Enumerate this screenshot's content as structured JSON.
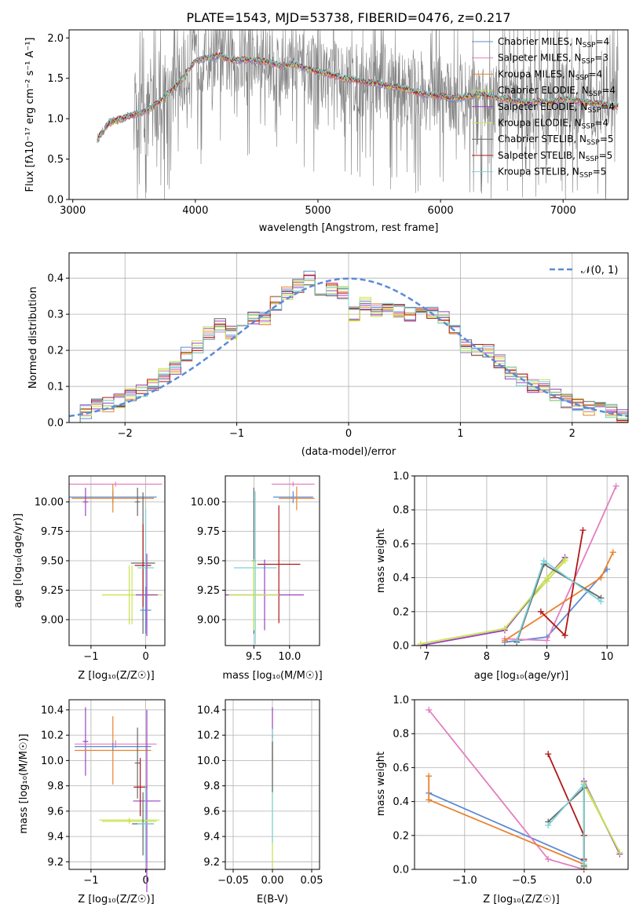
{
  "colors": {
    "chabrier_miles": "#5b8bd6",
    "salpeter_miles": "#e37ec0",
    "kroupa_miles": "#e8822d",
    "chabrier_elodie": "#c8e04a",
    "salpeter_elodie": "#9b3fc0",
    "kroupa_elodie": "#c9e65a",
    "chabrier_stelib": "#666666",
    "salpeter_stelib": "#b01818",
    "kroupa_stelib": "#7ad3d8",
    "data_grey": "#808080",
    "normal_curve": "#5b8bd6",
    "grid": "#b0b0b0"
  },
  "chart_data": [
    {
      "id": "spectrum",
      "type": "line",
      "title": "PLATE=1543, MJD=53738, FIBERID=0476, z=0.217",
      "xlabel": "wavelength [Angstrom, rest frame]",
      "ylabel": "Flux [fλ10⁻¹⁷ erg cm⁻² s⁻¹ A⁻¹]",
      "xlim": [
        2970,
        7530
      ],
      "ylim": [
        0,
        2.1
      ],
      "xticks": [
        "3000",
        "4000",
        "5000",
        "6000",
        "7000"
      ],
      "yticks": [
        "0.0",
        "0.5",
        "1.0",
        "1.5",
        "2.0"
      ],
      "legend_position": "top-right",
      "legend": [
        {
          "main": "Chabrier MILES, N",
          "sub": "SSP",
          "tail": "=4"
        },
        {
          "main": "Salpeter MILES, N",
          "sub": "SSP",
          "tail": "=3"
        },
        {
          "main": "Kroupa MILES, N",
          "sub": "SSP",
          "tail": "=4"
        },
        {
          "main": "Chabrier ELODIE, N",
          "sub": "SSP",
          "tail": "=4"
        },
        {
          "main": "Salpeter ELODIE, N",
          "sub": "SSP",
          "tail": "=4"
        },
        {
          "main": "Kroupa ELODIE, N",
          "sub": "SSP",
          "tail": "=4"
        },
        {
          "main": "Chabrier STELIB, N",
          "sub": "SSP",
          "tail": "=5"
        },
        {
          "main": "Salpeter STELIB, N",
          "sub": "SSP",
          "tail": "=5"
        },
        {
          "main": "Kroupa STELIB, N",
          "sub": "SSP",
          "tail": "=5"
        }
      ],
      "model_continuum": {
        "wavelength": [
          3200,
          3300,
          3400,
          3500,
          3600,
          3700,
          3800,
          3900,
          4000,
          4100,
          4200,
          4300,
          4400,
          4500,
          4600,
          4700,
          4800,
          4900,
          5000,
          5100,
          5200,
          5300,
          5400,
          5500,
          5600,
          5700,
          5800,
          5900,
          6000,
          6100,
          6200,
          6300,
          6400,
          6500,
          6600,
          6700,
          6800,
          6900,
          7000,
          7100,
          7200,
          7300,
          7400
        ],
        "flux": [
          0.75,
          0.95,
          1.0,
          1.05,
          1.1,
          1.2,
          1.35,
          1.5,
          1.72,
          1.75,
          1.78,
          1.72,
          1.73,
          1.72,
          1.7,
          1.65,
          1.68,
          1.62,
          1.58,
          1.55,
          1.5,
          1.48,
          1.45,
          1.43,
          1.4,
          1.38,
          1.32,
          1.3,
          1.28,
          1.25,
          1.27,
          1.3,
          1.28,
          1.25,
          1.23,
          1.2,
          1.22,
          1.2,
          1.25,
          1.22,
          1.2,
          1.18,
          1.15
        ]
      },
      "data_range": [
        3200,
        7450
      ]
    },
    {
      "id": "residuals",
      "type": "histogram",
      "xlabel": "(data-model)/error",
      "ylabel": "Normed distribution",
      "xlim": [
        -2.5,
        2.5
      ],
      "ylim": [
        0,
        0.47
      ],
      "xticks": [
        "−2",
        "−1",
        "0",
        "1",
        "2"
      ],
      "yticks": [
        "0.0",
        "0.1",
        "0.2",
        "0.3",
        "0.4"
      ],
      "legend_position": "top-right",
      "legend": [
        "𝒩(0, 1)"
      ],
      "bin_width": 0.1,
      "bin_start": -2.5,
      "heights": [
        0.02,
        0.03,
        0.05,
        0.05,
        0.06,
        0.08,
        0.09,
        0.1,
        0.13,
        0.15,
        0.19,
        0.21,
        0.25,
        0.27,
        0.25,
        0.27,
        0.29,
        0.29,
        0.33,
        0.36,
        0.38,
        0.4,
        0.36,
        0.37,
        0.36,
        0.3,
        0.33,
        0.31,
        0.32,
        0.31,
        0.3,
        0.32,
        0.3,
        0.29,
        0.25,
        0.21,
        0.2,
        0.2,
        0.17,
        0.14,
        0.12,
        0.1,
        0.1,
        0.08,
        0.06,
        0.05,
        0.04,
        0.04,
        0.03,
        0.02
      ]
    },
    {
      "id": "age_vs_Z",
      "type": "scatter",
      "xlabel": "Z [log₁₀(Z/Z☉)]",
      "ylabel": "age  [log₁₀(age/yr)]",
      "xlim": [
        -1.4,
        0.35
      ],
      "ylim": [
        8.78,
        10.22
      ],
      "xticks": [
        "−1",
        "0"
      ],
      "yticks": [
        "9.00",
        "9.25",
        "9.50",
        "9.75",
        "10.00"
      ]
    },
    {
      "id": "age_vs_mass",
      "type": "scatter",
      "xlabel": "mass [log₁₀(M/M☉)]",
      "ylabel": "",
      "xlim": [
        9.1,
        10.42
      ],
      "ylim": [
        8.78,
        10.22
      ],
      "xticks": [
        "9.5",
        "10.0"
      ],
      "yticks": [
        "9.00",
        "9.25",
        "9.50",
        "9.75",
        "10.00"
      ]
    },
    {
      "id": "weight_vs_age",
      "type": "line",
      "xlabel": "age  [log₁₀(age/yr)]",
      "ylabel": "mass weight",
      "xlim": [
        6.8,
        10.35
      ],
      "ylim": [
        0,
        1.0
      ],
      "xticks": [
        "7",
        "8",
        "9",
        "10"
      ],
      "yticks": [
        "0.0",
        "0.2",
        "0.4",
        "0.6",
        "0.8",
        "1.0"
      ],
      "series": [
        {
          "color_key": "chabrier_miles",
          "x": [
            8.3,
            9.0,
            10.0
          ],
          "y": [
            0.02,
            0.05,
            0.45
          ]
        },
        {
          "color_key": "salpeter_miles",
          "x": [
            8.3,
            9.0,
            10.15
          ],
          "y": [
            0.04,
            0.03,
            0.94
          ]
        },
        {
          "color_key": "kroupa_miles",
          "x": [
            8.3,
            9.9,
            10.1
          ],
          "y": [
            0.03,
            0.4,
            0.55
          ]
        },
        {
          "color_key": "chabrier_elodie",
          "x": [
            6.9,
            8.3,
            9.0,
            9.3
          ],
          "y": [
            0.01,
            0.1,
            0.38,
            0.5
          ]
        },
        {
          "color_key": "salpeter_elodie",
          "x": [
            6.9,
            8.3,
            9.0,
            9.3
          ],
          "y": [
            0.0,
            0.09,
            0.4,
            0.52
          ]
        },
        {
          "color_key": "kroupa_elodie",
          "x": [
            6.9,
            8.3,
            9.0,
            9.3
          ],
          "y": [
            0.01,
            0.1,
            0.4,
            0.51
          ]
        },
        {
          "color_key": "chabrier_stelib",
          "x": [
            8.5,
            8.95,
            9.9
          ],
          "y": [
            0.02,
            0.48,
            0.28
          ]
        },
        {
          "color_key": "salpeter_stelib",
          "x": [
            8.9,
            9.3,
            9.6
          ],
          "y": [
            0.2,
            0.06,
            0.68
          ]
        },
        {
          "color_key": "kroupa_stelib",
          "x": [
            8.5,
            8.95,
            9.9
          ],
          "y": [
            0.03,
            0.5,
            0.26
          ]
        }
      ]
    },
    {
      "id": "mass_vs_Z",
      "type": "scatter",
      "xlabel": "Z [log₁₀(Z/Z☉)]",
      "ylabel": "mass [log₁₀(M/M☉)]",
      "xlim": [
        -1.4,
        0.35
      ],
      "ylim": [
        9.14,
        10.48
      ],
      "xticks": [
        "−1",
        "0"
      ],
      "yticks": [
        "9.2",
        "9.4",
        "9.6",
        "9.8",
        "10.0",
        "10.2",
        "10.4"
      ]
    },
    {
      "id": "mass_vs_EBV",
      "type": "scatter",
      "xlabel": "E(B-V)",
      "ylabel": "",
      "xlim": [
        -0.06,
        0.06
      ],
      "ylim": [
        9.14,
        10.48
      ],
      "xticks": [
        "−0.05",
        "0.00",
        "0.05"
      ],
      "yticks": [
        "9.2",
        "9.4",
        "9.6",
        "9.8",
        "10.0",
        "10.2",
        "10.4"
      ]
    },
    {
      "id": "weight_vs_Z",
      "type": "line",
      "xlabel": "Z [log₁₀(Z/Z☉)]",
      "ylabel": "mass weight",
      "xlim": [
        -1.42,
        0.37
      ],
      "ylim": [
        0,
        1.0
      ],
      "xticks": [
        "−1.0",
        "−0.5",
        "0.0"
      ],
      "yticks": [
        "0.0",
        "0.2",
        "0.4",
        "0.6",
        "0.8",
        "1.0"
      ],
      "series": [
        {
          "color_key": "chabrier_miles",
          "x": [
            -1.3,
            0.0,
            0.0
          ],
          "y": [
            0.45,
            0.05,
            0.02
          ]
        },
        {
          "color_key": "salpeter_miles",
          "x": [
            -1.3,
            -0.3,
            0.0
          ],
          "y": [
            0.94,
            0.06,
            0.0
          ]
        },
        {
          "color_key": "kroupa_miles",
          "x": [
            -1.3,
            -1.3,
            0.0
          ],
          "y": [
            0.55,
            0.41,
            0.03
          ]
        },
        {
          "color_key": "chabrier_elodie",
          "x": [
            0.0,
            0.0,
            0.3
          ],
          "y": [
            0.01,
            0.5,
            0.1
          ]
        },
        {
          "color_key": "salpeter_elodie",
          "x": [
            0.0,
            0.0,
            0.3
          ],
          "y": [
            0.0,
            0.52,
            0.09
          ]
        },
        {
          "color_key": "kroupa_elodie",
          "x": [
            0.0,
            0.0,
            0.3
          ],
          "y": [
            0.01,
            0.51,
            0.1
          ]
        },
        {
          "color_key": "chabrier_stelib",
          "x": [
            -0.3,
            0.0,
            0.0
          ],
          "y": [
            0.28,
            0.48,
            0.02
          ]
        },
        {
          "color_key": "salpeter_stelib",
          "x": [
            -0.3,
            0.0,
            0.0
          ],
          "y": [
            0.68,
            0.2,
            0.06
          ]
        },
        {
          "color_key": "kroupa_stelib",
          "x": [
            -0.3,
            0.0,
            0.0
          ],
          "y": [
            0.26,
            0.5,
            0.03
          ]
        }
      ]
    }
  ]
}
